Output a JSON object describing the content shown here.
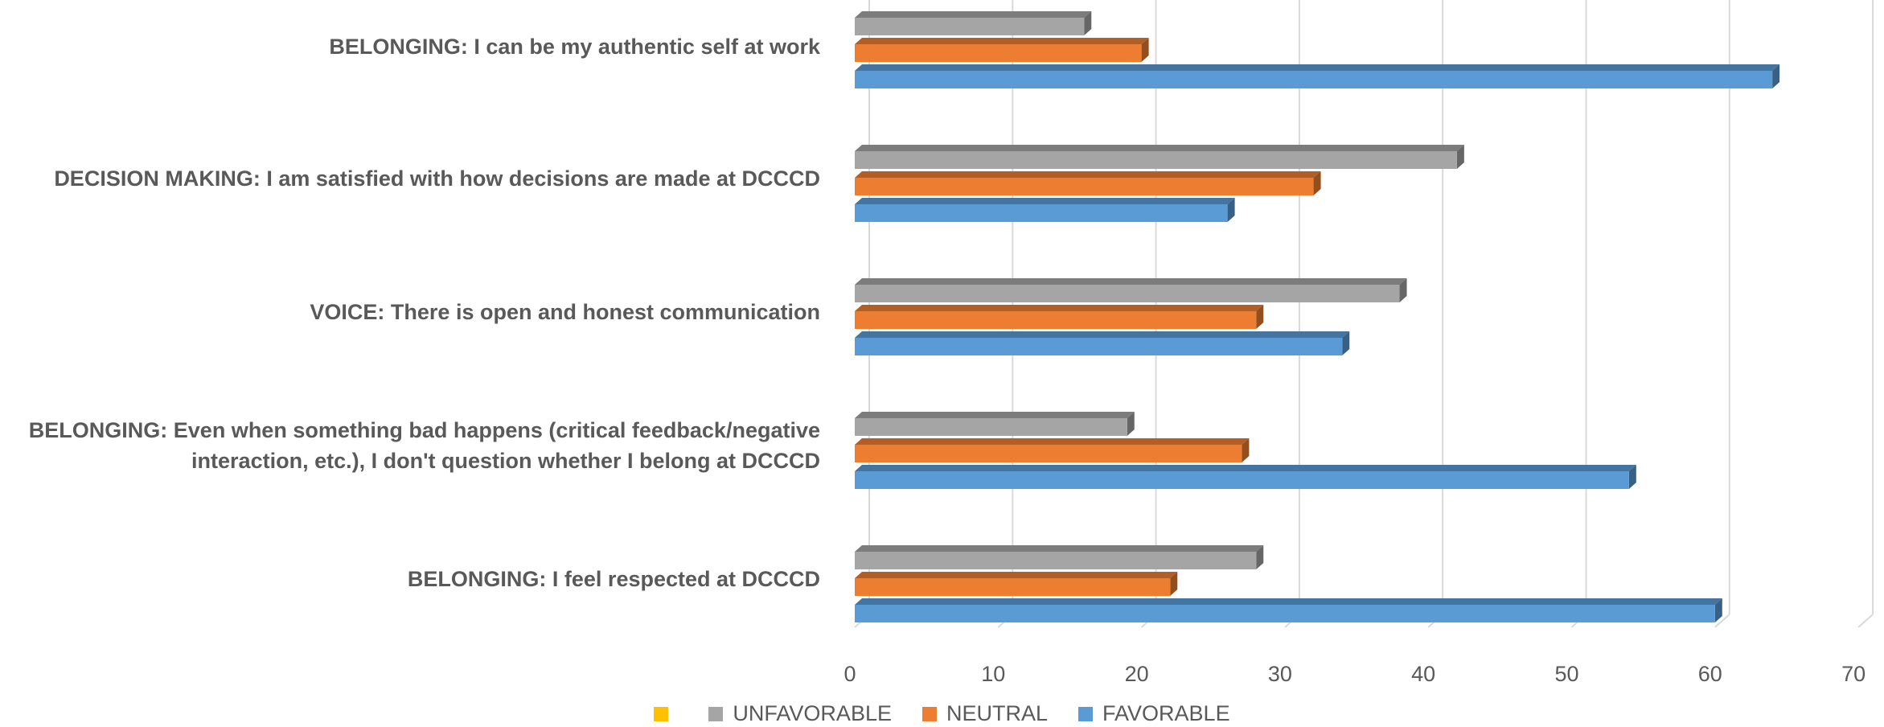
{
  "chart_data": {
    "type": "bar",
    "orientation": "horizontal",
    "style": "3d-clustered",
    "categories": [
      "BELONGING: I can be my authentic self at work",
      "DECISION MAKING: I am satisfied with how decisions are made at DCCCD",
      "VOICE: There is open and honest communication",
      "BELONGING: Even when something bad happens (critical feedback/negative interaction, etc.), I don't question whether I belong at DCCCD",
      "BELONGING: I feel respected at DCCCD"
    ],
    "series": [
      {
        "name": "UNFAVORABLE",
        "color": "#a5a5a5",
        "values": [
          16,
          42,
          38,
          19,
          28
        ]
      },
      {
        "name": "NEUTRAL",
        "color": "#ed7d31",
        "values": [
          20,
          32,
          28,
          27,
          22
        ]
      },
      {
        "name": "FAVORABLE",
        "color": "#5b9bd5",
        "values": [
          64,
          26,
          34,
          54,
          60
        ]
      }
    ],
    "legend": [
      {
        "name": "",
        "color": "#ffc000"
      },
      {
        "name": "UNFAVORABLE",
        "color": "#a5a5a5"
      },
      {
        "name": "NEUTRAL",
        "color": "#ed7d31"
      },
      {
        "name": "FAVORABLE",
        "color": "#5b9bd5"
      }
    ],
    "xlim": [
      0,
      70
    ],
    "ticks": [
      "0",
      "10",
      "20",
      "30",
      "40",
      "50",
      "60",
      "70"
    ],
    "grid": true,
    "legend_position": "bottom"
  }
}
